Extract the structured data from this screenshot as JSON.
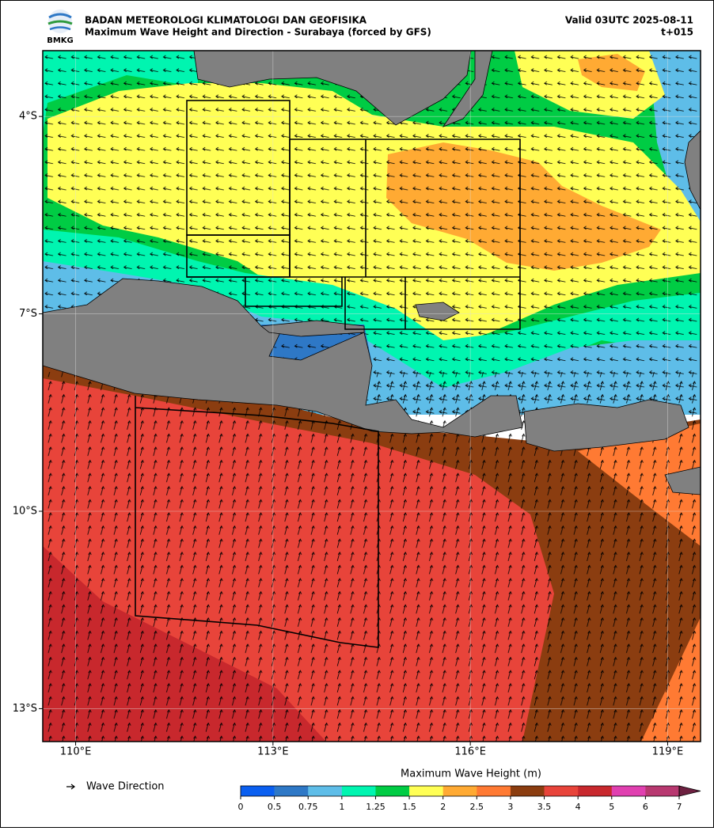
{
  "header": {
    "agency": "BADAN METEOROLOGI KLIMATOLOGI DAN GEOFISIKA",
    "title": "Maximum Wave Height and Direction - Surabaya (forced by GFS)",
    "valid": "Valid 03UTC 2025-08-11",
    "lead": "t+015",
    "logo": "BMKG"
  },
  "map": {
    "xlim": [
      109.5,
      119.5
    ],
    "ylim": [
      -13.5,
      -3
    ],
    "xticks": [
      {
        "value": 110,
        "label": "110°E"
      },
      {
        "value": 113,
        "label": "113°E"
      },
      {
        "value": 116,
        "label": "116°E"
      },
      {
        "value": 119,
        "label": "119°E"
      }
    ],
    "yticks": [
      {
        "value": -4,
        "label": "4°S"
      },
      {
        "value": -7,
        "label": "7°S"
      },
      {
        "value": -10,
        "label": "10°S"
      },
      {
        "value": -13,
        "label": "13°S"
      }
    ],
    "grid": true,
    "legend": "Wave Direction",
    "colorbar": {
      "label": "Maximum Wave Height (m)",
      "levels": [
        0,
        0.5,
        0.75,
        1,
        1.25,
        1.5,
        2,
        2.5,
        3,
        3.5,
        4,
        5,
        6,
        7
      ],
      "colors": [
        "#0a5ff0",
        "#2e78c6",
        "#5ebde8",
        "#00f5b0",
        "#00cc44",
        "#ffff55",
        "#ffaa33",
        "#ff7a33",
        "#8b3d10",
        "#e8443a",
        "#c8282d",
        "#e040b0",
        "#b83870"
      ],
      "extend_color": "#6d2040"
    }
  }
}
